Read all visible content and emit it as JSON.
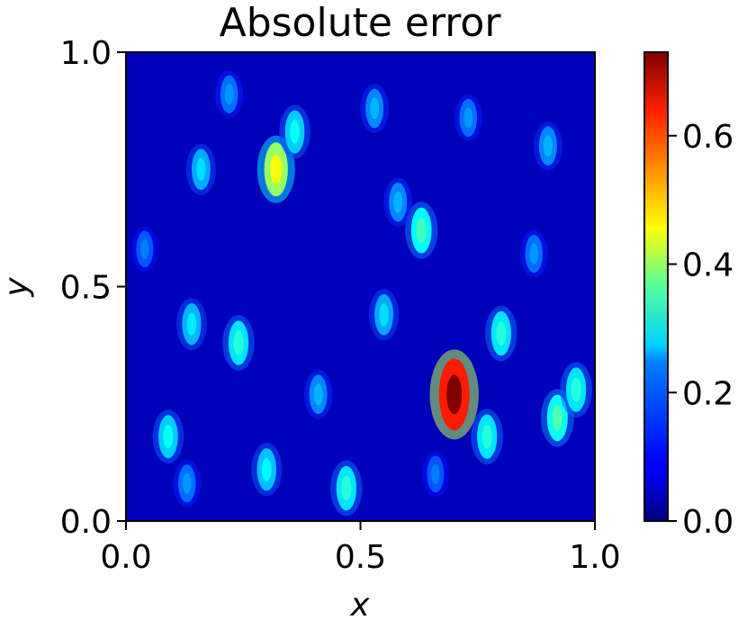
{
  "chart_data": {
    "type": "heatmap",
    "title": "Absolute error",
    "xlabel": "x",
    "ylabel": "y",
    "xlim": [
      0.0,
      1.0
    ],
    "ylim": [
      0.0,
      1.0
    ],
    "x_ticks": [
      "0.0",
      "0.5",
      "1.0"
    ],
    "y_ticks": [
      "0.0",
      "0.5",
      "1.0"
    ],
    "colorbar": {
      "colormap": "jet",
      "range": [
        0.0,
        0.73
      ],
      "ticks": [
        "0.0",
        "0.2",
        "0.4",
        "0.6"
      ],
      "tick_values": [
        0.0,
        0.2,
        0.4,
        0.6
      ]
    },
    "grid": false,
    "peak": {
      "x": 0.7,
      "y": 0.27,
      "value": 0.73
    },
    "hotspots": [
      {
        "x": 0.7,
        "y": 0.27,
        "value": 0.73
      },
      {
        "x": 0.32,
        "y": 0.75,
        "value": 0.45
      },
      {
        "x": 0.36,
        "y": 0.83,
        "value": 0.28
      },
      {
        "x": 0.63,
        "y": 0.62,
        "value": 0.32
      },
      {
        "x": 0.8,
        "y": 0.4,
        "value": 0.3
      },
      {
        "x": 0.92,
        "y": 0.22,
        "value": 0.33
      },
      {
        "x": 0.96,
        "y": 0.28,
        "value": 0.3
      },
      {
        "x": 0.47,
        "y": 0.07,
        "value": 0.3
      },
      {
        "x": 0.09,
        "y": 0.18,
        "value": 0.28
      },
      {
        "x": 0.24,
        "y": 0.38,
        "value": 0.3
      },
      {
        "x": 0.14,
        "y": 0.42,
        "value": 0.26
      },
      {
        "x": 0.16,
        "y": 0.75,
        "value": 0.25
      },
      {
        "x": 0.55,
        "y": 0.44,
        "value": 0.25
      },
      {
        "x": 0.77,
        "y": 0.18,
        "value": 0.3
      },
      {
        "x": 0.3,
        "y": 0.11,
        "value": 0.27
      },
      {
        "x": 0.58,
        "y": 0.68,
        "value": 0.22
      },
      {
        "x": 0.87,
        "y": 0.57,
        "value": 0.2
      },
      {
        "x": 0.04,
        "y": 0.58,
        "value": 0.18
      },
      {
        "x": 0.41,
        "y": 0.27,
        "value": 0.22
      },
      {
        "x": 0.22,
        "y": 0.91,
        "value": 0.2
      },
      {
        "x": 0.53,
        "y": 0.88,
        "value": 0.22
      },
      {
        "x": 0.73,
        "y": 0.86,
        "value": 0.2
      },
      {
        "x": 0.9,
        "y": 0.8,
        "value": 0.22
      },
      {
        "x": 0.13,
        "y": 0.08,
        "value": 0.2
      },
      {
        "x": 0.66,
        "y": 0.1,
        "value": 0.18
      }
    ]
  }
}
